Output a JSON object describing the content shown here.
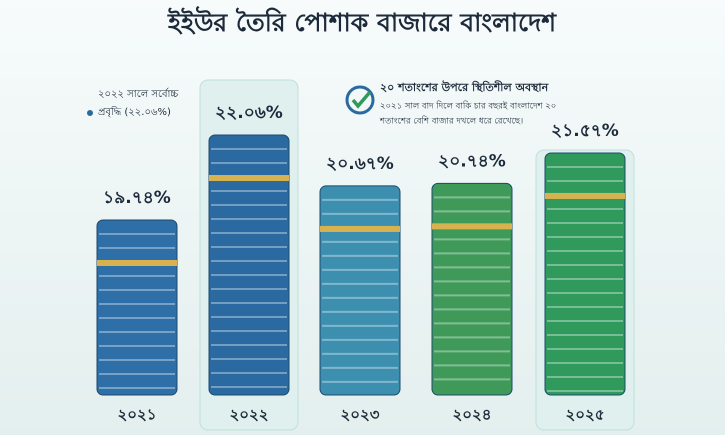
{
  "chart_data": {
    "type": "bar",
    "title": "ইইউর তৈরি পোশাক বাজারে বাংলাদেশ",
    "categories": [
      "২০২১",
      "২০২২",
      "২০২৩",
      "২০২৪",
      "২০২৫"
    ],
    "values": [
      19.74,
      22.06,
      20.67,
      20.74,
      21.57
    ],
    "value_labels": [
      "১৯.৭৪%",
      "২২.০৬%",
      "২০.৬৭%",
      "২০.৭৪%",
      "২১.৫৭%"
    ],
    "colors": [
      "#2f6fa8",
      "#2a6aa0",
      "#3d8fb0",
      "#3f9a5a",
      "#2f9a5c"
    ],
    "highlight_note": [
      "২০২২ সালে সর্বোচ্চ",
      "প্রবৃদ্ধি (২২.০৬%)"
    ],
    "info_box": {
      "heading": "২০ শতাংশের উপরে স্থিতিশীল অবস্থান",
      "lines": [
        "২০২১ সাল বাদ দিলে বাকি চার বছরই বাংলাদেশ ২০",
        "শতাংশের বেশি বাজার দখলে ধরে রেখেছে।"
      ]
    }
  }
}
